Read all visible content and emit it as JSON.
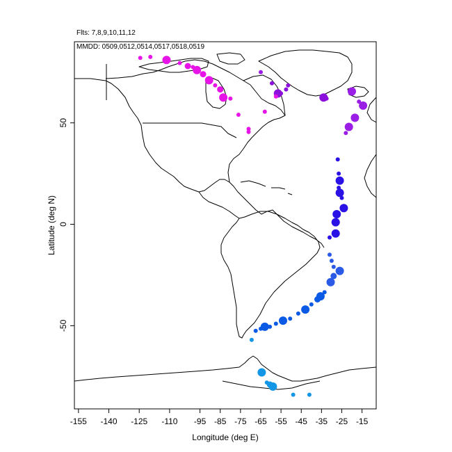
{
  "header": {
    "flights": "Flts: 7,8,9,10,11,12",
    "dates": "MMDD: 0509,0512,0514,0517,0518,0519"
  },
  "axes": {
    "xlabel": "Longitude (deg E)",
    "ylabel": "Latitude (deg N)",
    "xlim": [
      -157,
      -8
    ],
    "ylim": [
      -91,
      90
    ],
    "xticks": [
      -155,
      -140,
      -125,
      -110,
      -95,
      -85,
      -75,
      -65,
      -55,
      -45,
      -35,
      -25,
      -15
    ],
    "yticks": [
      -50,
      0,
      50
    ]
  },
  "chart_data": {
    "type": "scatter",
    "xlabel": "Longitude (deg E)",
    "ylabel": "Latitude (deg N)",
    "xlim": [
      -157,
      -8
    ],
    "ylim": [
      -91,
      90
    ],
    "grid": false,
    "basemap": "coastlines of the Americas, Greenland and Antarctica",
    "points": [
      {
        "lon": -124.5,
        "lat": 82,
        "size": 1,
        "color": "#e614e6"
      },
      {
        "lon": -119.5,
        "lat": 82.5,
        "size": 1,
        "color": "#e614e6"
      },
      {
        "lon": -111.5,
        "lat": 81,
        "size": 3,
        "color": "#e614e6"
      },
      {
        "lon": -105,
        "lat": 79.5,
        "size": 1,
        "color": "#e614e6"
      },
      {
        "lon": -101,
        "lat": 78,
        "size": 2,
        "color": "#e614e6"
      },
      {
        "lon": -98.5,
        "lat": 77.5,
        "size": 1,
        "color": "#e614e6"
      },
      {
        "lon": -96.5,
        "lat": 76,
        "size": 3,
        "color": "#e614e6"
      },
      {
        "lon": -93.5,
        "lat": 74,
        "size": 2,
        "color": "#e614e6"
      },
      {
        "lon": -90.5,
        "lat": 71,
        "size": 3,
        "color": "#e614e6"
      },
      {
        "lon": -87.5,
        "lat": 68.5,
        "size": 1,
        "color": "#e614e6"
      },
      {
        "lon": -85,
        "lat": 66.5,
        "size": 2,
        "color": "#e614e6"
      },
      {
        "lon": -83.5,
        "lat": 62.5,
        "size": 3,
        "color": "#e614e6"
      },
      {
        "lon": -80,
        "lat": 62,
        "size": 1,
        "color": "#e614e6"
      },
      {
        "lon": -76,
        "lat": 54,
        "size": 1,
        "color": "#e614e6"
      },
      {
        "lon": -71,
        "lat": 47,
        "size": 1,
        "color": "#e614e6"
      },
      {
        "lon": -71,
        "lat": 45.5,
        "size": 1,
        "color": "#e614e6"
      },
      {
        "lon": -65,
        "lat": 75,
        "size": 1,
        "color": "#9b1ee6"
      },
      {
        "lon": -63,
        "lat": 55.5,
        "size": 1,
        "color": "#e614e6"
      },
      {
        "lon": -59.5,
        "lat": 69.5,
        "size": 1,
        "color": "#8c10dc"
      },
      {
        "lon": -56.5,
        "lat": 64.5,
        "size": 3,
        "color": "#8c10dc"
      },
      {
        "lon": -55,
        "lat": 64.5,
        "size": 1,
        "color": "#8c10dc"
      },
      {
        "lon": -52.5,
        "lat": 66.5,
        "size": 1,
        "color": "#8c10dc"
      },
      {
        "lon": -51.5,
        "lat": 68.5,
        "size": 1,
        "color": "#8c10dc"
      },
      {
        "lon": -57.5,
        "lat": 63,
        "size": 1,
        "color": "#e614e6"
      },
      {
        "lon": -34,
        "lat": 62.5,
        "size": 3,
        "color": "#8c10dc"
      },
      {
        "lon": -32.5,
        "lat": 62,
        "size": 1,
        "color": "#8c10dc"
      },
      {
        "lon": -20,
        "lat": 65.5,
        "size": 3,
        "color": "#9b1ee6"
      },
      {
        "lon": -16.5,
        "lat": 60.5,
        "size": 1,
        "color": "#9b1ee6"
      },
      {
        "lon": -14.5,
        "lat": 58.5,
        "size": 3,
        "color": "#9b1ee6"
      },
      {
        "lon": -18.5,
        "lat": 52.5,
        "size": 3,
        "color": "#9b1ee6"
      },
      {
        "lon": -21.5,
        "lat": 48,
        "size": 3,
        "color": "#9b1ee6"
      },
      {
        "lon": -23,
        "lat": 45,
        "size": 1,
        "color": "#9b1ee6"
      },
      {
        "lon": -27,
        "lat": 32,
        "size": 1,
        "color": "#2a12e6"
      },
      {
        "lon": -26.5,
        "lat": 25,
        "size": 1,
        "color": "#2a12e6"
      },
      {
        "lon": -26,
        "lat": 21.5,
        "size": 3,
        "color": "#2a12e6"
      },
      {
        "lon": -26.5,
        "lat": 18,
        "size": 1,
        "color": "#2a12e6"
      },
      {
        "lon": -26,
        "lat": 15.5,
        "size": 3,
        "color": "#2a12e6"
      },
      {
        "lon": -25,
        "lat": 13,
        "size": 1,
        "color": "#2a12e6"
      },
      {
        "lon": -24,
        "lat": 8,
        "size": 3,
        "color": "#2a12e6"
      },
      {
        "lon": -27.5,
        "lat": 5,
        "size": 3,
        "color": "#2a12e6"
      },
      {
        "lon": -28,
        "lat": 1,
        "size": 3,
        "color": "#2a12e6"
      },
      {
        "lon": -28,
        "lat": -4.5,
        "size": 3,
        "color": "#2a12e6"
      },
      {
        "lon": -31,
        "lat": -6.5,
        "size": 1,
        "color": "#2a12e6"
      },
      {
        "lon": -31,
        "lat": -15,
        "size": 1,
        "color": "#2a5ae6"
      },
      {
        "lon": -30,
        "lat": -18,
        "size": 1,
        "color": "#2a5ae6"
      },
      {
        "lon": -29,
        "lat": -21,
        "size": 1,
        "color": "#2a5ae6"
      },
      {
        "lon": -26,
        "lat": -23,
        "size": 3,
        "color": "#2a5ae6"
      },
      {
        "lon": -29,
        "lat": -25.5,
        "size": 2,
        "color": "#2a5ae6"
      },
      {
        "lon": -30.5,
        "lat": -28.5,
        "size": 3,
        "color": "#2a5ae6"
      },
      {
        "lon": -33.5,
        "lat": -33.5,
        "size": 1,
        "color": "#0a5ae6"
      },
      {
        "lon": -35.5,
        "lat": -35.5,
        "size": 3,
        "color": "#0a5ae6"
      },
      {
        "lon": -37,
        "lat": -37,
        "size": 2,
        "color": "#0a5ae6"
      },
      {
        "lon": -40,
        "lat": -39.5,
        "size": 1,
        "color": "#0a5ae6"
      },
      {
        "lon": -43,
        "lat": -42,
        "size": 3,
        "color": "#0a5ae6"
      },
      {
        "lon": -46.5,
        "lat": -44,
        "size": 1,
        "color": "#0a5ae6"
      },
      {
        "lon": -50.5,
        "lat": -46.5,
        "size": 1,
        "color": "#0a5ae6"
      },
      {
        "lon": -54,
        "lat": -47.5,
        "size": 3,
        "color": "#0a5ae6"
      },
      {
        "lon": -57.5,
        "lat": -49,
        "size": 1,
        "color": "#0a5ae6"
      },
      {
        "lon": -60.5,
        "lat": -50.5,
        "size": 1,
        "color": "#0a5ae6"
      },
      {
        "lon": -63,
        "lat": -50.5,
        "size": 3,
        "color": "#0a5ae6"
      },
      {
        "lon": -65,
        "lat": -51.5,
        "size": 1,
        "color": "#0a5ae6"
      },
      {
        "lon": -67.5,
        "lat": -52.5,
        "size": 1,
        "color": "#0a5ae6"
      },
      {
        "lon": -69.5,
        "lat": -57,
        "size": 1,
        "color": "#1496e6"
      },
      {
        "lon": -64.5,
        "lat": -73,
        "size": 3,
        "color": "#1496e6"
      },
      {
        "lon": -62,
        "lat": -78,
        "size": 1,
        "color": "#1496e6"
      },
      {
        "lon": -60.5,
        "lat": -79,
        "size": 2,
        "color": "#1496e6"
      },
      {
        "lon": -59,
        "lat": -80,
        "size": 3,
        "color": "#1496e6"
      },
      {
        "lon": -49,
        "lat": -84,
        "size": 1,
        "color": "#1496e6"
      },
      {
        "lon": -41,
        "lat": -84,
        "size": 1,
        "color": "#1496e6"
      }
    ]
  }
}
